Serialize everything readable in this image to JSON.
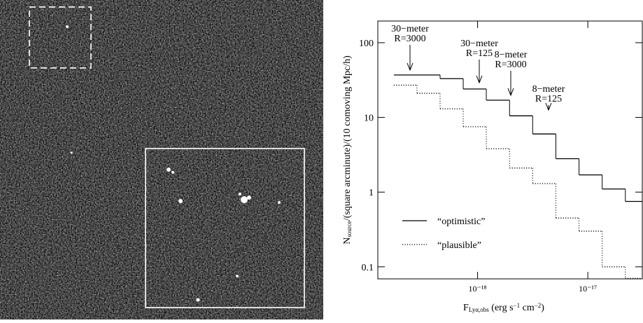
{
  "chart_data": {
    "type": "histogram",
    "xlabel": [
      {
        "text": "F"
      },
      {
        "text": "Lyα,obs",
        "sub": true
      },
      {
        "text": " (erg s"
      },
      {
        "text": "−1",
        "sup": true
      },
      {
        "text": " cm"
      },
      {
        "text": "−2",
        "sup": true
      },
      {
        "text": ")"
      }
    ],
    "ylabel": [
      {
        "text": "N"
      },
      {
        "text": "source",
        "sub": true
      },
      {
        "text": "/(square arcminute)/(10 comoving Mpc/h)"
      }
    ],
    "bins": [
      1.74e-19,
      2.82e-19,
      4.57e-19,
      7.41e-19,
      1.2e-18,
      1.95e-18,
      3.16e-18,
      5.13e-18,
      8.32e-18,
      1.35e-17,
      2.19e-17,
      3.12e-17
    ],
    "series": [
      {
        "name": "“optimistic”",
        "color": "#000000",
        "style": "solid",
        "values": [
          37,
          37,
          33,
          24,
          17,
          10.5,
          6,
          2.8,
          1.7,
          1.1,
          0.75
        ]
      },
      {
        "name": "“plausible”",
        "color": "#000000",
        "style": "dotted",
        "values": [
          27,
          21,
          13,
          7.5,
          3.8,
          2.1,
          1.3,
          0.45,
          0.3,
          0.1,
          0.07
        ]
      }
    ],
    "annotations": [
      {
        "lines": [
          "30−meter",
          "R=3000"
        ]
      },
      {
        "lines": [
          "30−meter",
          "R=125"
        ]
      },
      {
        "lines": [
          "8−meter",
          "R=3000"
        ]
      },
      {
        "lines": [
          "8−meter",
          "R=125"
        ]
      }
    ],
    "xscale": "log",
    "yscale": "log",
    "xlim": [
      1.245e-19,
      3.12e-17
    ],
    "ylim": [
      0.069,
      195
    ],
    "xticks": [
      {
        "value": 1e-18,
        "label": "10⁻¹⁸"
      },
      {
        "value": 1e-17,
        "label": "10⁻¹⁷"
      }
    ],
    "yticks": [
      0.1,
      1,
      10,
      100
    ],
    "legend": "lower left"
  }
}
